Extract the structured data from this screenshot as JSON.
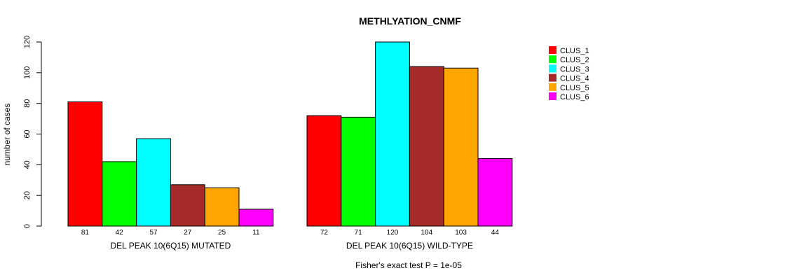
{
  "chart_data": {
    "type": "bar",
    "title": "METHLYATION_CNMF",
    "ylabel": "number of cases",
    "ylim": [
      0,
      120
    ],
    "yticks": [
      0,
      20,
      40,
      60,
      80,
      100,
      120
    ],
    "legend_position": "top-right",
    "series": [
      {
        "name": "CLUS_1",
        "color": "#FF0000"
      },
      {
        "name": "CLUS_2",
        "color": "#00FF00"
      },
      {
        "name": "CLUS_3",
        "color": "#00FFFF"
      },
      {
        "name": "CLUS_4",
        "color": "#A52A2A"
      },
      {
        "name": "CLUS_5",
        "color": "#FFA500"
      },
      {
        "name": "CLUS_6",
        "color": "#FF00FF"
      }
    ],
    "groups": [
      {
        "label": "DEL PEAK 10(6Q15) MUTATED",
        "values": [
          81,
          42,
          57,
          27,
          25,
          11
        ]
      },
      {
        "label": "DEL PEAK 10(6Q15) WILD-TYPE",
        "values": [
          72,
          71,
          120,
          104,
          103,
          44
        ]
      }
    ],
    "footer": "Fisher's exact test P = 1e-05"
  }
}
